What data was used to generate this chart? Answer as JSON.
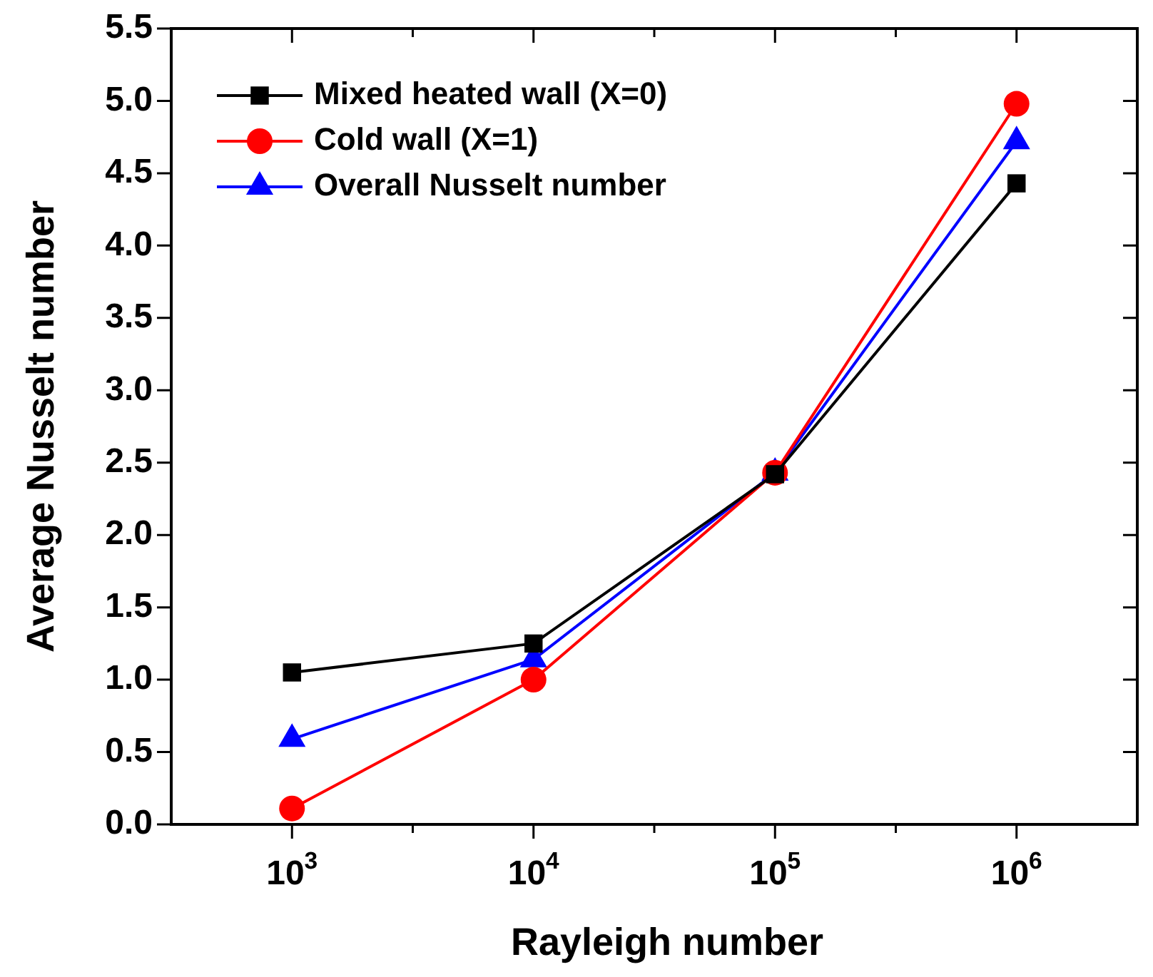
{
  "chart_data": {
    "type": "line",
    "xlabel": "Rayleigh number",
    "ylabel": "Average Nusselt number",
    "x": [
      1000,
      10000,
      100000,
      1000000
    ],
    "log": "x",
    "xlim": [
      316.2,
      3162278
    ],
    "xticks": [
      {
        "value": 1000,
        "label": "10$^{3}$"
      },
      {
        "value": 3162,
        "label": null
      },
      {
        "value": 10000,
        "label": "10$^{4}$"
      },
      {
        "value": 31623,
        "label": null
      },
      {
        "value": 100000,
        "label": "10$^{5}$"
      },
      {
        "value": 316228,
        "label": null
      },
      {
        "value": 1000000,
        "label": "10$^{6}$"
      }
    ],
    "ylim": [
      0,
      5.5
    ],
    "yticks": [
      {
        "value": 0,
        "label": "0.0"
      },
      0.5,
      {
        "value": 1,
        "label": "1.0"
      },
      1.5,
      {
        "value": 2,
        "label": "2.0"
      },
      2.5,
      {
        "value": 3,
        "label": "3.0"
      },
      3.5,
      {
        "value": 4,
        "label": "4.0"
      },
      4.5,
      {
        "value": 5,
        "label": "5.0"
      },
      5.5
    ],
    "series": [
      {
        "name": "Mixed heated wall (X=0)",
        "color": "#000000",
        "marker": "square",
        "values": [
          1.05,
          1.25,
          2.42,
          4.43
        ]
      },
      {
        "name": "Cold wall (X=1)",
        "color": "#ff0000",
        "marker": "circle",
        "values": [
          0.11,
          1.0,
          2.43,
          4.98
        ]
      },
      {
        "name": "Overall Nusselt number",
        "color": "#0000ff",
        "marker": "triangle",
        "values": [
          0.59,
          1.14,
          2.43,
          4.72
        ]
      }
    ],
    "legend": "top left",
    "grid": false,
    "line_style": "solid"
  }
}
